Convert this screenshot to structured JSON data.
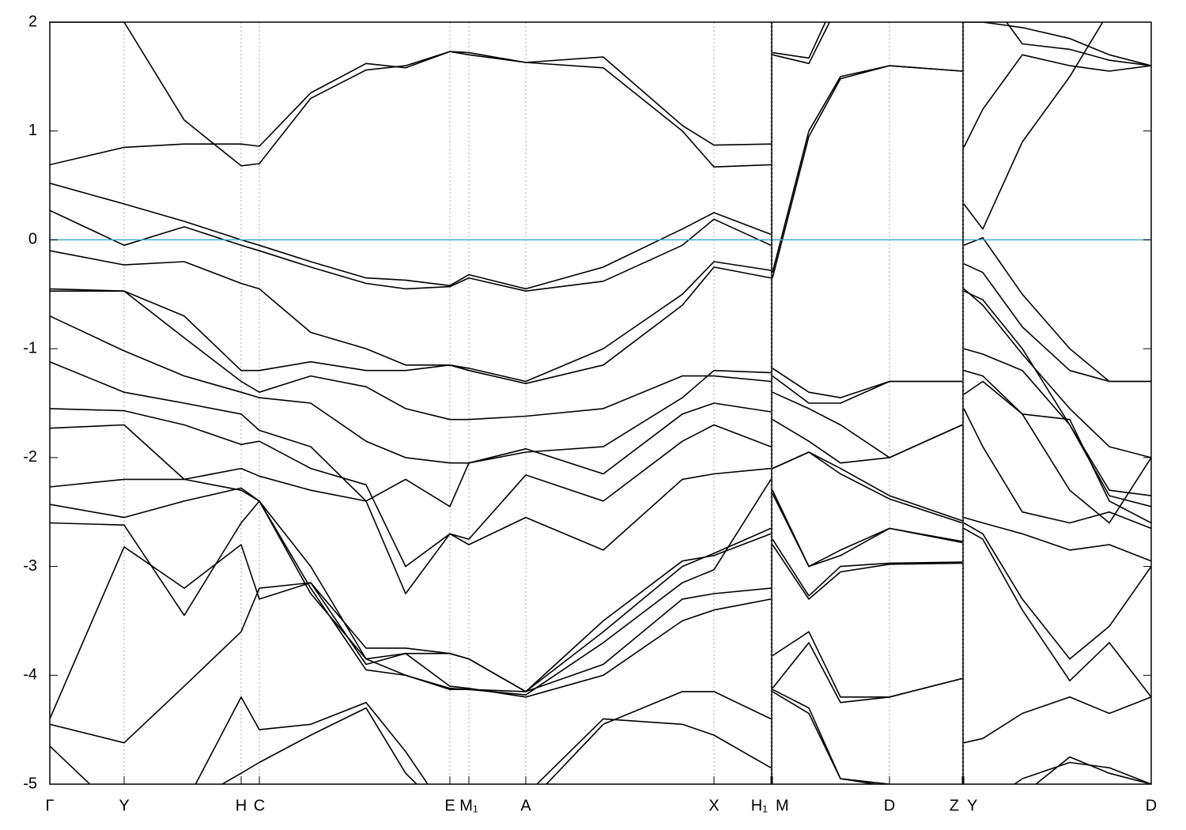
{
  "chart_data": {
    "type": "line",
    "color": "#000000",
    "fermi_level": 0,
    "fermi_color": "#4aa8c8",
    "xlim": [
      0,
      13.93
    ],
    "ylim": [
      -5,
      2
    ],
    "yticks": [
      2,
      1,
      0,
      -1,
      -2,
      -3,
      -4,
      -5
    ],
    "xticks": [
      {
        "value": 0,
        "label": "Γ"
      },
      {
        "value": 0.94,
        "label": "Y"
      },
      {
        "value": 2.42,
        "label": "H"
      },
      {
        "value": 2.65,
        "label": "C"
      },
      {
        "value": 5.06,
        "label": "E"
      },
      {
        "value": 5.3,
        "label": "M₁"
      },
      {
        "value": 6.02,
        "label": "A"
      },
      {
        "value": 8.4,
        "label": "X"
      },
      {
        "value": 9.12,
        "label": "H₁"
      },
      {
        "value": 9.14,
        "label": "M"
      },
      {
        "value": 10.62,
        "label": "D"
      },
      {
        "value": 11.54,
        "label": "Z"
      },
      {
        "value": 11.56,
        "label": "Y"
      },
      {
        "value": 13.93,
        "label": "D"
      }
    ],
    "breaks": [
      9.13,
      11.55
    ],
    "x": [
      0,
      0.94,
      1.7,
      2.42,
      2.65,
      3.3,
      4.0,
      4.5,
      5.06,
      5.3,
      6.02,
      7.0,
      8.0,
      8.4,
      9.12,
      9.13,
      9.14,
      9.6,
      10.0,
      10.62,
      11.54,
      11.55,
      11.56,
      11.8,
      12.3,
      12.9,
      13.4,
      13.93
    ],
    "series": [
      {
        "values": [
          2.0,
          2.0,
          1.1,
          0.68,
          0.7,
          1.3,
          1.56,
          1.6,
          1.73,
          1.7,
          1.63,
          1.58,
          1.0,
          0.67,
          0.69,
          null,
          1.72,
          1.67,
          2.3,
          2.5,
          2.5,
          null,
          2.0,
          2.0,
          1.95,
          1.85,
          1.7,
          1.6
        ]
      },
      {
        "values": [
          0.69,
          0.85,
          0.88,
          0.88,
          0.86,
          1.35,
          1.62,
          1.58,
          1.73,
          1.72,
          1.63,
          1.68,
          1.05,
          0.87,
          0.88,
          null,
          1.7,
          1.62,
          2.2,
          2.5,
          2.5,
          null,
          2.5,
          2.3,
          1.8,
          1.75,
          1.65,
          1.6
        ]
      },
      {
        "values": [
          0.52,
          0.33,
          0.17,
          0.0,
          -0.05,
          -0.2,
          -0.35,
          -0.37,
          -0.42,
          -0.32,
          -0.45,
          -0.25,
          0.1,
          0.25,
          0.05,
          null,
          -0.3,
          1.0,
          1.5,
          1.6,
          1.55,
          null,
          0.85,
          1.2,
          1.7,
          1.6,
          1.55,
          1.6
        ]
      },
      {
        "values": [
          0.27,
          -0.05,
          0.12,
          -0.05,
          -0.1,
          -0.25,
          -0.4,
          -0.45,
          -0.43,
          -0.35,
          -0.47,
          -0.38,
          -0.05,
          0.19,
          -0.05,
          null,
          -0.35,
          0.95,
          1.48,
          1.6,
          1.55,
          null,
          0.33,
          0.1,
          0.9,
          1.5,
          2.1,
          2.5
        ]
      },
      {
        "values": [
          -0.1,
          -0.23,
          -0.2,
          -0.4,
          -0.45,
          -0.85,
          -1.0,
          -1.15,
          -1.15,
          -1.18,
          -1.3,
          -1.0,
          -0.5,
          -0.2,
          -0.28,
          null,
          -1.18,
          -1.4,
          -1.45,
          -1.3,
          -1.3,
          null,
          -0.05,
          0.02,
          -0.5,
          -1.0,
          -1.3,
          -1.3
        ]
      },
      {
        "values": [
          -0.45,
          -0.47,
          -0.7,
          -1.2,
          -1.2,
          -1.12,
          -1.2,
          -1.2,
          -1.15,
          -1.2,
          -1.32,
          -1.15,
          -0.6,
          -0.25,
          -0.35,
          null,
          -1.25,
          -1.5,
          -1.5,
          -1.3,
          -1.3,
          null,
          -0.22,
          -0.3,
          -0.8,
          -1.2,
          -1.3,
          -1.3
        ]
      },
      {
        "values": [
          -0.47,
          -0.47,
          -0.9,
          -1.3,
          -1.4,
          -1.25,
          -1.35,
          -1.55,
          -1.65,
          -1.65,
          -1.62,
          -1.55,
          -1.25,
          -1.25,
          -1.3,
          null,
          -1.4,
          -1.55,
          -1.7,
          -2.0,
          -1.7,
          null,
          -0.45,
          -0.6,
          -1.05,
          -1.55,
          -1.9,
          -2.0
        ]
      },
      {
        "values": [
          -0.7,
          -1.02,
          -1.25,
          -1.4,
          -1.45,
          -1.5,
          -1.85,
          -2.0,
          -2.05,
          -2.05,
          -1.95,
          -1.9,
          -1.45,
          -1.2,
          -1.22,
          null,
          -1.65,
          -1.85,
          -2.05,
          -2.0,
          -1.7,
          null,
          -0.47,
          -0.55,
          -1.0,
          -1.7,
          -2.3,
          -2.35
        ]
      },
      {
        "values": [
          -1.12,
          -1.4,
          -1.5,
          -1.6,
          -1.75,
          -1.9,
          -2.4,
          -2.2,
          -2.45,
          -2.05,
          -1.92,
          -2.15,
          -1.6,
          -1.5,
          -1.58,
          null,
          -2.1,
          -1.95,
          -2.1,
          -2.35,
          -2.58,
          null,
          -1.0,
          -1.05,
          -1.2,
          -1.7,
          -2.35,
          -2.45
        ]
      },
      {
        "values": [
          -1.55,
          -1.57,
          -1.7,
          -1.88,
          -1.85,
          -2.1,
          -2.25,
          -3.0,
          -2.7,
          -2.75,
          -2.16,
          -2.4,
          -1.85,
          -1.7,
          -1.9,
          null,
          -2.1,
          -1.95,
          -2.15,
          -2.38,
          -2.6,
          null,
          -1.2,
          -1.25,
          -1.6,
          -1.65,
          -2.4,
          -2.6
        ]
      },
      {
        "values": [
          -1.73,
          -1.7,
          -2.2,
          -2.1,
          -2.17,
          -2.3,
          -2.4,
          -3.25,
          -2.7,
          -2.8,
          -2.55,
          -2.85,
          -2.2,
          -2.15,
          -2.1,
          null,
          -2.3,
          -3.0,
          -2.85,
          -2.65,
          -2.77,
          null,
          -1.42,
          -1.3,
          -1.6,
          -2.3,
          -2.6,
          -2.0
        ]
      },
      {
        "values": [
          -2.27,
          -2.2,
          -2.2,
          -2.3,
          -2.4,
          -3.0,
          -3.85,
          -3.8,
          -3.8,
          -3.85,
          -4.15,
          -3.6,
          -3.0,
          -2.88,
          -2.65,
          null,
          -2.33,
          -3.0,
          -2.9,
          -2.65,
          -2.78,
          null,
          -1.55,
          -1.9,
          -2.5,
          -2.6,
          -2.5,
          -2.65
        ]
      },
      {
        "values": [
          -2.43,
          -2.55,
          -2.4,
          -2.28,
          -2.4,
          -3.2,
          -3.95,
          -4.0,
          -4.12,
          -4.13,
          -4.18,
          -3.7,
          -3.15,
          -3.03,
          -2.2,
          null,
          -2.75,
          -3.27,
          -3.0,
          -2.97,
          -2.96,
          null,
          -2.55,
          -2.6,
          -2.7,
          -2.85,
          -2.8,
          -2.95
        ]
      },
      {
        "values": [
          -2.6,
          -2.62,
          -3.45,
          -2.6,
          -2.4,
          -3.25,
          -3.85,
          -4.0,
          -4.13,
          -4.13,
          -4.15,
          -3.9,
          -3.3,
          -3.25,
          -3.2,
          null,
          -2.8,
          -3.3,
          -3.05,
          -2.98,
          -2.97,
          null,
          -2.6,
          -2.7,
          -3.3,
          -3.85,
          -3.55,
          -3.0
        ]
      },
      {
        "values": [
          -4.4,
          -2.82,
          -3.2,
          -2.8,
          -3.3,
          -3.15,
          -3.9,
          -3.8,
          -4.1,
          -4.12,
          -4.2,
          -4.0,
          -3.5,
          -3.4,
          -3.3,
          null,
          -3.82,
          -3.6,
          -4.2,
          -4.2,
          -4.03,
          null,
          -2.65,
          -2.75,
          -3.4,
          -4.05,
          -3.7,
          -4.2
        ]
      },
      {
        "values": [
          -4.45,
          -4.62,
          -4.1,
          -3.6,
          -3.2,
          -3.15,
          -3.75,
          -3.75,
          -3.8,
          -3.85,
          -4.15,
          -3.5,
          -2.95,
          -2.9,
          -2.7,
          null,
          -4.12,
          -3.7,
          -4.25,
          -4.2,
          -4.03,
          null,
          -4.62,
          -4.58,
          -4.35,
          -4.2,
          -4.35,
          -4.2
        ]
      },
      {
        "values": [
          -4.65,
          -5.3,
          -5.2,
          -4.2,
          -4.5,
          -4.45,
          -4.25,
          -4.7,
          -5.3,
          -5.3,
          -5.2,
          -4.45,
          -4.15,
          -4.15,
          -4.4,
          null,
          -4.13,
          -4.3,
          -4.95,
          -5.0,
          -5.3,
          null,
          -5.3,
          -5.2,
          -4.95,
          -4.8,
          -4.85,
          -5.0
        ]
      },
      {
        "values": [
          -5.3,
          -5.3,
          -5.2,
          -4.9,
          -4.8,
          -4.55,
          -4.3,
          -4.9,
          -5.3,
          -5.3,
          -5.1,
          -4.4,
          -4.45,
          -4.55,
          -4.85,
          null,
          -4.15,
          -4.35,
          -4.95,
          -5.02,
          -5.3,
          null,
          -5.3,
          -5.3,
          -5.1,
          -4.75,
          -4.9,
          -5.0
        ]
      }
    ]
  }
}
